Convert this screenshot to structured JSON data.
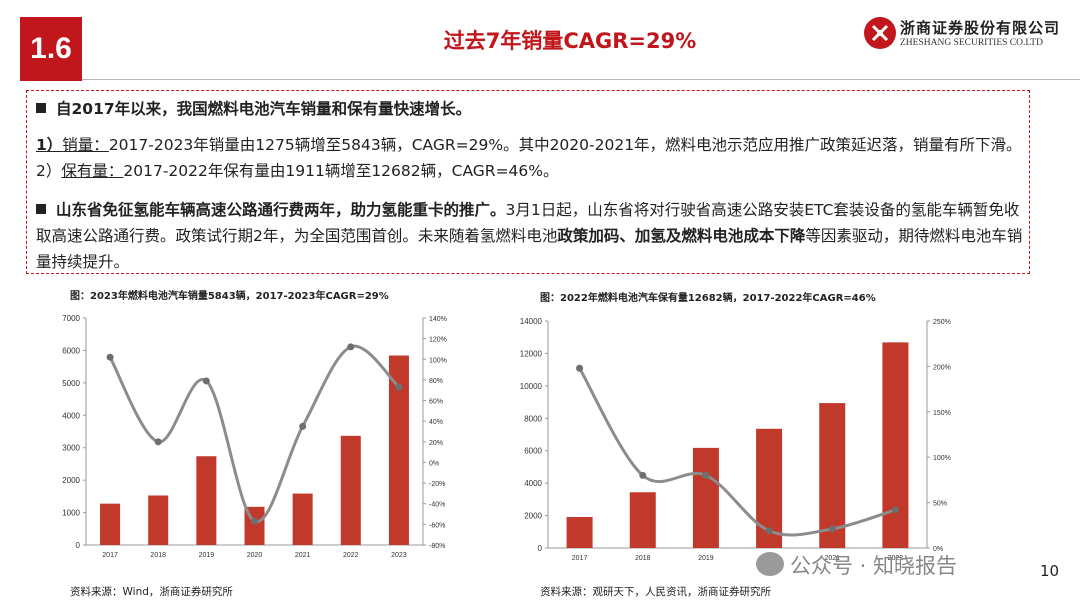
{
  "slide": {
    "section_number": "1.6",
    "title": "过去7年销量CAGR=29%",
    "page_number": "10"
  },
  "logo": {
    "name_cn": "浙商证券股份有限公司",
    "name_en": "ZHESHANG SECURITIES CO.LTD"
  },
  "summary": {
    "p1": "自2017年以来，我国燃料电池汽车销量和保有量快速增长。",
    "p2_num1": "1）",
    "p2_label1": "销量：",
    "p2_text1": "2017-2023年销量由1275辆增至5843辆，CAGR=29%。其中2020-2021年，燃料电池示范应用推广政策延迟落，销量有所下滑。2）",
    "p2_label2": "保有量：",
    "p2_text2": "2017-2022年保有量由1911辆增至12682辆，CAGR=46%。",
    "p3_bold": "山东省免征氢能车辆高速公路通行费两年，助力氢能重卡的推广。",
    "p3_text1": "3月1日起，山东省将对行驶省高速公路安装ETC套装设备的氢能车辆暂免收取高速公路通行费。政策试行期2年，为全国范围首创。未来随着氢燃料电池",
    "p3_bold2": "政策加码、加氢及燃料电池成本下降",
    "p3_text2": "等因素驱动，期待燃料电池车销量持续提升。"
  },
  "chart1": {
    "title": "图：2023年燃料电池汽车销量5843辆，2017-2023年CAGR=29%",
    "source": "资料来源：Wind，浙商证券研究所"
  },
  "chart2": {
    "title": "图：2022年燃料电池汽车保有量12682辆，2017-2022年CAGR=46%",
    "source": "资料来源：观研天下，人民资讯，浙商证券研究所"
  },
  "watermark": "公众号 · 知晓报告",
  "colors": {
    "accent": "#c0161c",
    "bar": "#c0392b",
    "line": "#8c8c8c"
  },
  "chart_data": [
    {
      "type": "bar",
      "title": "图：2023年燃料电池汽车销量5843辆，2017-2023年CAGR=29%",
      "categories": [
        "2017",
        "2018",
        "2019",
        "2020",
        "2021",
        "2022",
        "2023"
      ],
      "series": [
        {
          "values": [
            1275,
            1527,
            2737,
            1177,
            1586,
            3367,
            5843
          ],
          "axis": "left"
        },
        {
          "values": [
            1.02,
            0.2,
            0.79,
            -0.57,
            0.35,
            1.12,
            0.73
          ],
          "axis": "right",
          "kind": "line"
        }
      ],
      "ylim": [
        0,
        7000
      ],
      "yticks": [
        "0",
        "1000",
        "2000",
        "3000",
        "4000",
        "5000",
        "6000",
        "7000"
      ],
      "y2lim": [
        -0.8,
        1.4
      ],
      "y2ticks": [
        "-80%",
        "-60%",
        "-40%",
        "-20%",
        "0%",
        "20%",
        "40%",
        "60%",
        "80%",
        "100%",
        "120%",
        "140%"
      ],
      "legend": "none",
      "grid": false
    },
    {
      "type": "bar",
      "title": "图：2022年燃料电池汽车保有量12682辆，2017-2022年CAGR=46%",
      "categories": [
        "2017",
        "2018",
        "2019",
        "2020",
        "2021",
        "2022"
      ],
      "series": [
        {
          "values": [
            1911,
            3438,
            6175,
            7352,
            8938,
            12682
          ],
          "axis": "left"
        },
        {
          "values": [
            1.98,
            0.8,
            0.8,
            0.19,
            0.21,
            0.42
          ],
          "axis": "right",
          "kind": "line"
        }
      ],
      "ylim": [
        0,
        14000
      ],
      "yticks": [
        "0",
        "2000",
        "4000",
        "6000",
        "8000",
        "10000",
        "12000",
        "14000"
      ],
      "y2lim": [
        0,
        2.5
      ],
      "y2ticks": [
        "0%",
        "50%",
        "100%",
        "150%",
        "200%",
        "250%"
      ],
      "legend": "none",
      "grid": false
    }
  ]
}
